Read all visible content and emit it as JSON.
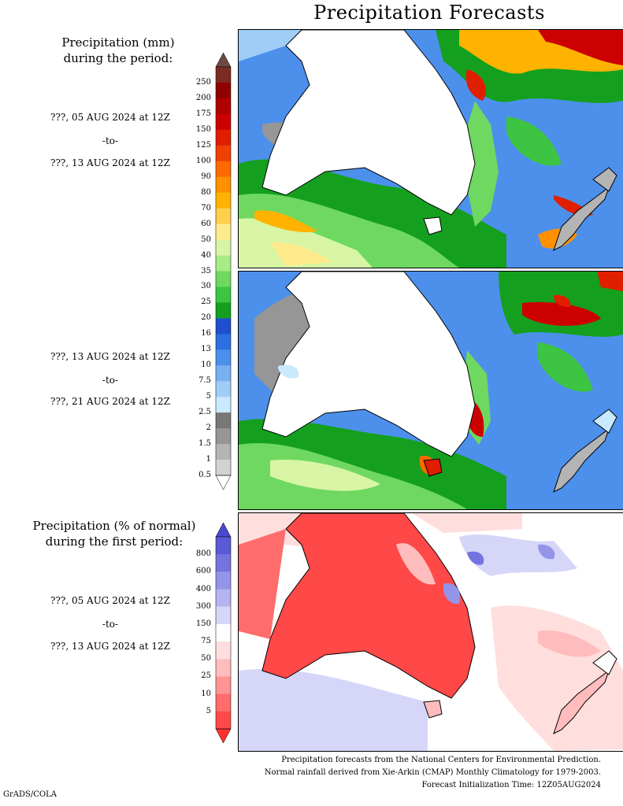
{
  "title": "Precipitation Forecasts",
  "panel_mm": {
    "heading_line1": "Precipitation (mm)",
    "heading_line2": "during the period:",
    "period1": {
      "start": "???, 05 AUG 2024 at 12Z",
      "sep": "-to-",
      "end": "???, 13 AUG 2024 at 12Z"
    },
    "period2": {
      "start": "???, 13 AUG 2024 at 12Z",
      "sep": "-to-",
      "end": "???, 21 AUG 2024 at 12Z"
    },
    "colorbar": {
      "labels": [
        "250",
        "200",
        "175",
        "150",
        "125",
        "100",
        "90",
        "80",
        "70",
        "60",
        "50",
        "40",
        "35",
        "30",
        "25",
        "20",
        "16",
        "13",
        "10",
        "7.5",
        "5",
        "2.5",
        "2",
        "1.5",
        "1",
        "0.5"
      ],
      "colors": [
        "#7a2c22",
        "#900000",
        "#b00000",
        "#cc0000",
        "#e01e00",
        "#f04000",
        "#ff6a00",
        "#ff9000",
        "#ffb300",
        "#ffd050",
        "#ffeb8c",
        "#d8f5a5",
        "#a8ec85",
        "#6ed860",
        "#3cc442",
        "#14a01e",
        "#1f4fd0",
        "#2c6fe0",
        "#4c90ec",
        "#78b0f2",
        "#a0cdf6",
        "#c8eafc",
        "#787878",
        "#969696",
        "#b4b4b4",
        "#d2d2d2"
      ],
      "top_arrow_color": "#6e4a44"
    }
  },
  "panel_pct": {
    "heading_line1": "Precipitation (% of normal)",
    "heading_line2": "during the first period:",
    "period": {
      "start": "???, 05 AUG 2024 at 12Z",
      "sep": "-to-",
      "end": "???, 13 AUG 2024 at 12Z"
    },
    "colorbar": {
      "labels": [
        "800",
        "600",
        "400",
        "300",
        "150",
        "75",
        "50",
        "25",
        "10",
        "5"
      ],
      "colors": [
        "#5a5ad6",
        "#7474e0",
        "#9494e8",
        "#b4b4f0",
        "#d6d6f8",
        "#ffffff",
        "#ffdede",
        "#ffbcbc",
        "#ff9494",
        "#ff6c6c",
        "#ff4848"
      ],
      "top_arrow_color": "#4a4ad0",
      "bottom_arrow_color": "#ff3030"
    }
  },
  "footer": {
    "line1": "Precipitation forecasts from the National Centers for Environmental Prediction.",
    "line2": "Normal rainfall derived from Xie-Arkin (CMAP) Monthly Climatology for 1979-2003.",
    "line3": "Forecast Initialization Time: 12Z05AUG2024"
  },
  "credit": "GrADS/COLA"
}
